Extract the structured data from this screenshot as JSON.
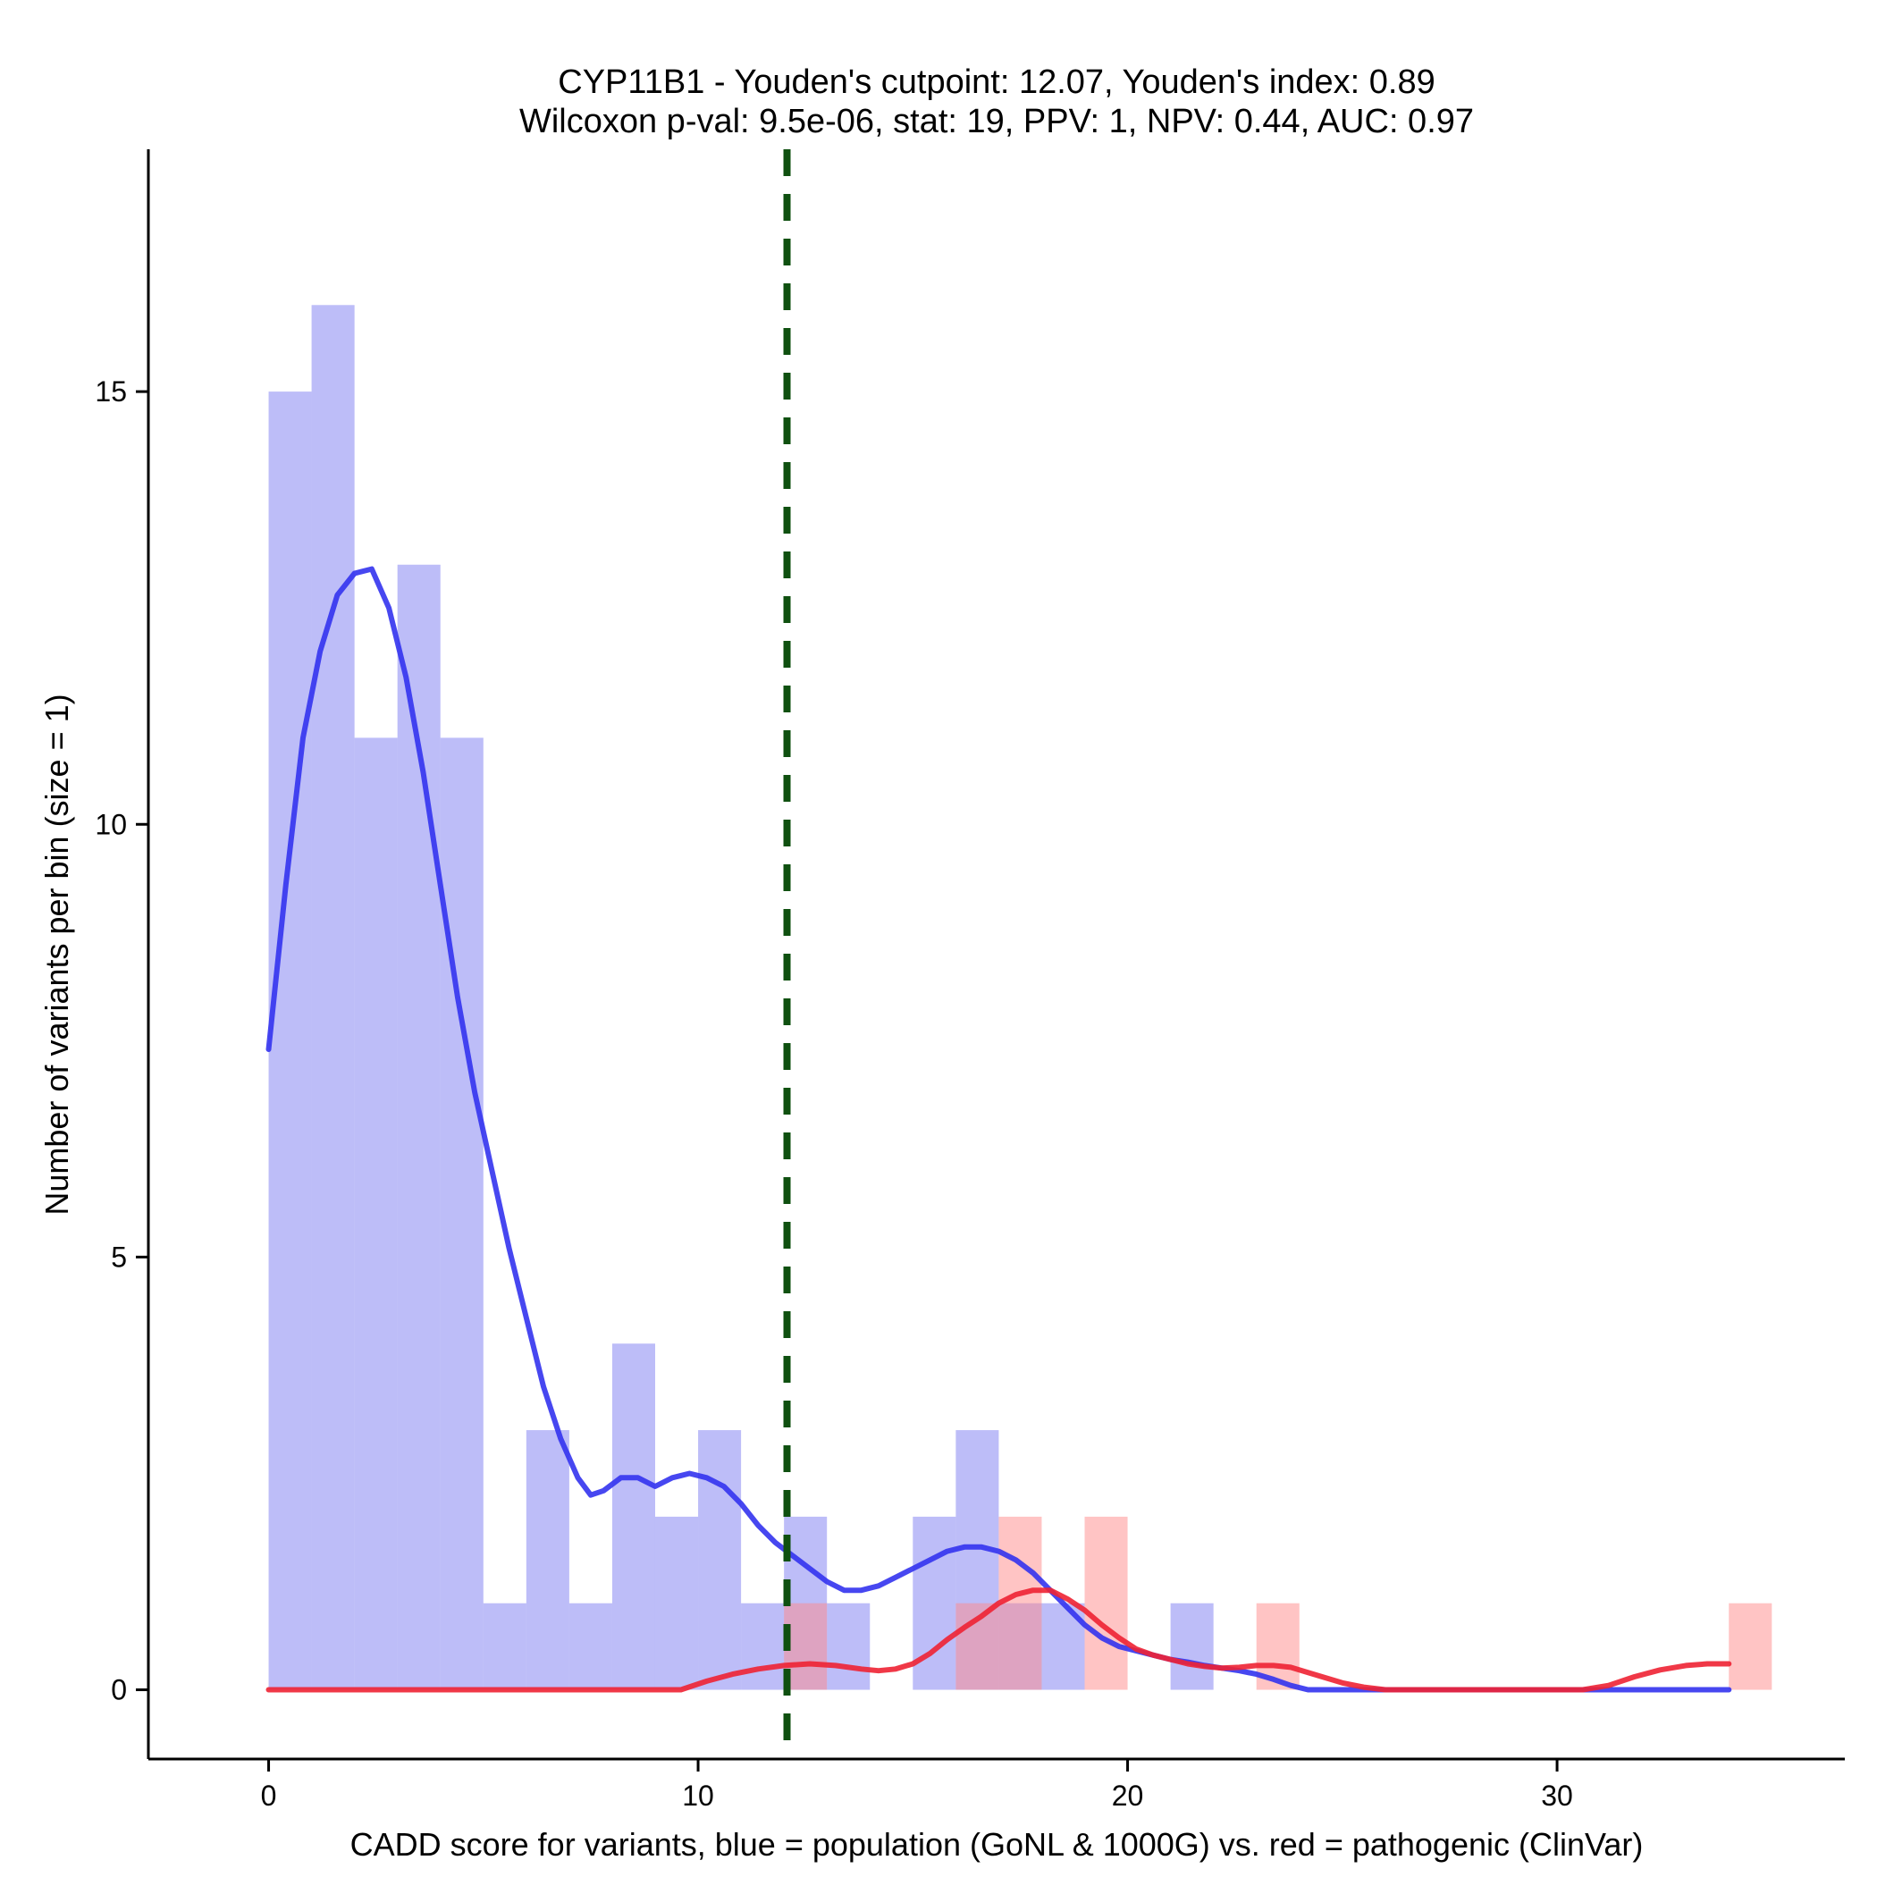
{
  "chart_data": {
    "type": "bar",
    "title_line1": "CYP11B1 - Youden's cutpoint: 12.07, Youden's index: 0.89",
    "title_line2": "Wilcoxon p-val: 9.5e-06, stat: 19, PPV: 1, NPV: 0.44, AUC: 0.97",
    "xlabel": "CADD score for variants, blue = population (GoNL & 1000G) vs. red = pathogenic (ClinVar)",
    "ylabel": "Number of variants per bin (size = 1)",
    "xlim": [
      -2.8,
      36.7
    ],
    "ylim": [
      -0.8,
      17.8
    ],
    "x_ticks": [
      0,
      10,
      20,
      30
    ],
    "y_ticks": [
      0,
      5,
      10,
      15
    ],
    "bin_size": 1,
    "cutpoint": 12.07,
    "cutpoint_color": "#0f5010",
    "series": [
      {
        "name": "population (GoNL & 1000G)",
        "color": "#7b7bf2",
        "line_color": "#3333ee",
        "bins": [
          {
            "x0": 0,
            "count": 15
          },
          {
            "x0": 1,
            "count": 16
          },
          {
            "x0": 2,
            "count": 11
          },
          {
            "x0": 3,
            "count": 13
          },
          {
            "x0": 4,
            "count": 11
          },
          {
            "x0": 5,
            "count": 1
          },
          {
            "x0": 6,
            "count": 3
          },
          {
            "x0": 7,
            "count": 1
          },
          {
            "x0": 8,
            "count": 4
          },
          {
            "x0": 9,
            "count": 2
          },
          {
            "x0": 10,
            "count": 3
          },
          {
            "x0": 11,
            "count": 1
          },
          {
            "x0": 12,
            "count": 2
          },
          {
            "x0": 13,
            "count": 1
          },
          {
            "x0": 15,
            "count": 2
          },
          {
            "x0": 16,
            "count": 3
          },
          {
            "x0": 17,
            "count": 1
          },
          {
            "x0": 18,
            "count": 1
          },
          {
            "x0": 21,
            "count": 1
          }
        ],
        "density": [
          [
            0,
            7.4
          ],
          [
            0.4,
            9.3
          ],
          [
            0.8,
            11.0
          ],
          [
            1.2,
            12.0
          ],
          [
            1.6,
            12.65
          ],
          [
            2.0,
            12.9
          ],
          [
            2.4,
            12.95
          ],
          [
            2.8,
            12.5
          ],
          [
            3.2,
            11.7
          ],
          [
            3.6,
            10.6
          ],
          [
            4.0,
            9.3
          ],
          [
            4.4,
            8.0
          ],
          [
            4.8,
            6.9
          ],
          [
            5.2,
            6.0
          ],
          [
            5.6,
            5.1
          ],
          [
            6.0,
            4.3
          ],
          [
            6.4,
            3.5
          ],
          [
            6.8,
            2.9
          ],
          [
            7.2,
            2.45
          ],
          [
            7.5,
            2.25
          ],
          [
            7.8,
            2.3
          ],
          [
            8.2,
            2.45
          ],
          [
            8.6,
            2.45
          ],
          [
            9.0,
            2.35
          ],
          [
            9.4,
            2.45
          ],
          [
            9.8,
            2.5
          ],
          [
            10.2,
            2.45
          ],
          [
            10.6,
            2.35
          ],
          [
            11.0,
            2.15
          ],
          [
            11.4,
            1.9
          ],
          [
            11.8,
            1.7
          ],
          [
            12.2,
            1.55
          ],
          [
            12.6,
            1.4
          ],
          [
            13.0,
            1.25
          ],
          [
            13.4,
            1.15
          ],
          [
            13.8,
            1.15
          ],
          [
            14.2,
            1.2
          ],
          [
            14.6,
            1.3
          ],
          [
            15.0,
            1.4
          ],
          [
            15.4,
            1.5
          ],
          [
            15.8,
            1.6
          ],
          [
            16.2,
            1.65
          ],
          [
            16.6,
            1.65
          ],
          [
            17.0,
            1.6
          ],
          [
            17.4,
            1.5
          ],
          [
            17.8,
            1.35
          ],
          [
            18.2,
            1.15
          ],
          [
            18.6,
            0.95
          ],
          [
            19.0,
            0.75
          ],
          [
            19.4,
            0.6
          ],
          [
            19.8,
            0.5
          ],
          [
            20.2,
            0.45
          ],
          [
            20.6,
            0.4
          ],
          [
            21.0,
            0.35
          ],
          [
            21.4,
            0.32
          ],
          [
            21.8,
            0.28
          ],
          [
            22.2,
            0.25
          ],
          [
            22.6,
            0.22
          ],
          [
            23.0,
            0.18
          ],
          [
            23.4,
            0.12
          ],
          [
            23.8,
            0.05
          ],
          [
            24.2,
            0.0
          ],
          [
            26.0,
            0.0
          ],
          [
            30.0,
            0.0
          ],
          [
            34.0,
            0.0
          ]
        ]
      },
      {
        "name": "pathogenic (ClinVar)",
        "color": "#ff8a8a",
        "line_color": "#ee2233",
        "bins": [
          {
            "x0": 12,
            "count": 1
          },
          {
            "x0": 16,
            "count": 1
          },
          {
            "x0": 17,
            "count": 2
          },
          {
            "x0": 19,
            "count": 2
          },
          {
            "x0": 23,
            "count": 1
          },
          {
            "x0": 34,
            "count": 1
          }
        ],
        "density": [
          [
            0,
            0.0
          ],
          [
            5,
            0.0
          ],
          [
            9.6,
            0.0
          ],
          [
            10.2,
            0.1
          ],
          [
            10.8,
            0.18
          ],
          [
            11.4,
            0.24
          ],
          [
            12.0,
            0.28
          ],
          [
            12.6,
            0.3
          ],
          [
            13.2,
            0.28
          ],
          [
            13.8,
            0.24
          ],
          [
            14.2,
            0.22
          ],
          [
            14.6,
            0.24
          ],
          [
            15.0,
            0.3
          ],
          [
            15.4,
            0.42
          ],
          [
            15.8,
            0.58
          ],
          [
            16.2,
            0.72
          ],
          [
            16.6,
            0.85
          ],
          [
            17.0,
            1.0
          ],
          [
            17.4,
            1.1
          ],
          [
            17.8,
            1.15
          ],
          [
            18.2,
            1.15
          ],
          [
            18.6,
            1.05
          ],
          [
            19.0,
            0.92
          ],
          [
            19.4,
            0.75
          ],
          [
            19.8,
            0.6
          ],
          [
            20.2,
            0.47
          ],
          [
            20.6,
            0.4
          ],
          [
            21.0,
            0.35
          ],
          [
            21.4,
            0.3
          ],
          [
            21.8,
            0.27
          ],
          [
            22.2,
            0.25
          ],
          [
            22.6,
            0.26
          ],
          [
            23.0,
            0.28
          ],
          [
            23.4,
            0.28
          ],
          [
            23.8,
            0.26
          ],
          [
            24.2,
            0.2
          ],
          [
            24.6,
            0.14
          ],
          [
            25.0,
            0.08
          ],
          [
            25.5,
            0.03
          ],
          [
            26.0,
            0.0
          ],
          [
            30.6,
            0.0
          ],
          [
            31.2,
            0.05
          ],
          [
            31.8,
            0.15
          ],
          [
            32.4,
            0.23
          ],
          [
            33.0,
            0.28
          ],
          [
            33.5,
            0.3
          ],
          [
            34.0,
            0.3
          ]
        ]
      }
    ]
  }
}
